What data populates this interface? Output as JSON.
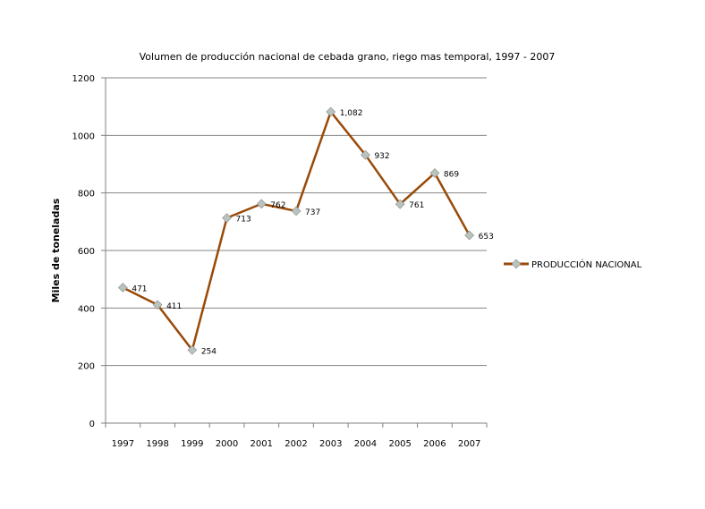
{
  "chart_data": {
    "type": "line",
    "title": "Volumen de producción nacional de cebada grano, riego mas temporal, 1997 - 2007",
    "xlabel": "",
    "ylabel": "Miles de toneladas",
    "categories": [
      "1997",
      "1998",
      "1999",
      "2000",
      "2001",
      "2002",
      "2003",
      "2004",
      "2005",
      "2006",
      "2007"
    ],
    "series": [
      {
        "name": "PRODUCCIÓN NACIONAL",
        "values": [
          471,
          411,
          254,
          713,
          762,
          737,
          1082,
          932,
          761,
          869,
          653
        ],
        "labels": [
          "471",
          "411",
          "254",
          "713",
          "762",
          "737",
          "1,082",
          "932",
          "761",
          "869",
          "653"
        ],
        "color": "#994a08",
        "marker_color": "#b9c3bd"
      }
    ],
    "ylim": [
      0,
      1200
    ],
    "yticks": [
      0,
      200,
      400,
      600,
      800,
      1000,
      1200
    ],
    "grid": true,
    "legend": "right"
  }
}
